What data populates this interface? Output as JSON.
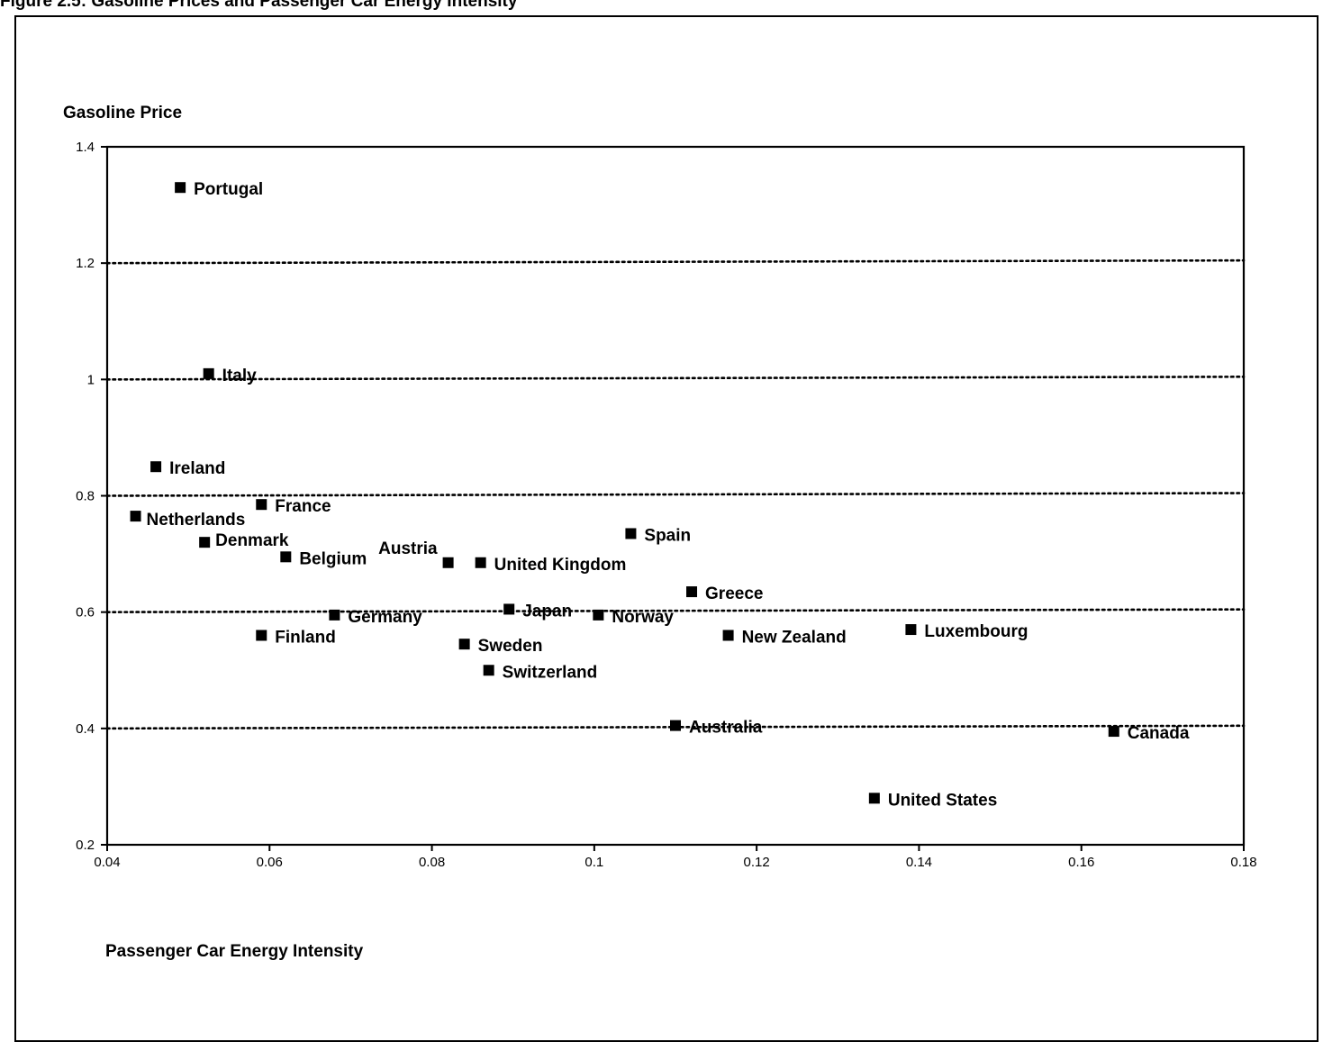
{
  "figure_title": "Figure 2.5: Gasoline Prices and Passenger Car Energy Intensity",
  "chart_data": {
    "type": "scatter",
    "title": "Figure 2.5: Gasoline Prices and Passenger Car Energy Intensity",
    "xlabel": "Passenger Car Energy Intensity",
    "ylabel": "Gasoline Price",
    "xlim": [
      0.04,
      0.18
    ],
    "ylim": [
      0.2,
      1.4
    ],
    "x_ticks": [
      "0.04",
      "0.06",
      "0.08",
      "0.1",
      "0.12",
      "0.14",
      "0.16",
      "0.18"
    ],
    "y_ticks": [
      "1.4",
      "1.2",
      "1",
      "0.8",
      "0.6",
      "0.4",
      "0.2"
    ],
    "gridlines": "horizontal dotted at 0.4, 0.6, 0.8, 1.0, 1.2",
    "marker": "square",
    "color": "#000000",
    "points": [
      {
        "label": "Portugal",
        "x": 0.049,
        "y": 1.33
      },
      {
        "label": "Italy",
        "x": 0.0525,
        "y": 1.01
      },
      {
        "label": "Ireland",
        "x": 0.046,
        "y": 0.85
      },
      {
        "label": "Netherlands",
        "x": 0.0435,
        "y": 0.765
      },
      {
        "label": "France",
        "x": 0.059,
        "y": 0.785
      },
      {
        "label": "Denmark",
        "x": 0.052,
        "y": 0.72
      },
      {
        "label": "Belgium",
        "x": 0.062,
        "y": 0.695
      },
      {
        "label": "Austria",
        "x": 0.082,
        "y": 0.685
      },
      {
        "label": "United Kingdom",
        "x": 0.086,
        "y": 0.685
      },
      {
        "label": "Spain",
        "x": 0.1045,
        "y": 0.735
      },
      {
        "label": "Greece",
        "x": 0.112,
        "y": 0.635
      },
      {
        "label": "Germany",
        "x": 0.068,
        "y": 0.595
      },
      {
        "label": "Japan",
        "x": 0.0895,
        "y": 0.605
      },
      {
        "label": "Norway",
        "x": 0.1005,
        "y": 0.595
      },
      {
        "label": "Finland",
        "x": 0.059,
        "y": 0.56
      },
      {
        "label": "Sweden",
        "x": 0.084,
        "y": 0.545
      },
      {
        "label": "Switzerland",
        "x": 0.087,
        "y": 0.5
      },
      {
        "label": "New Zealand",
        "x": 0.1165,
        "y": 0.56
      },
      {
        "label": "Luxembourg",
        "x": 0.139,
        "y": 0.57
      },
      {
        "label": "Australia",
        "x": 0.11,
        "y": 0.405
      },
      {
        "label": "Canada",
        "x": 0.164,
        "y": 0.395
      },
      {
        "label": "United States",
        "x": 0.1345,
        "y": 0.28
      }
    ]
  }
}
